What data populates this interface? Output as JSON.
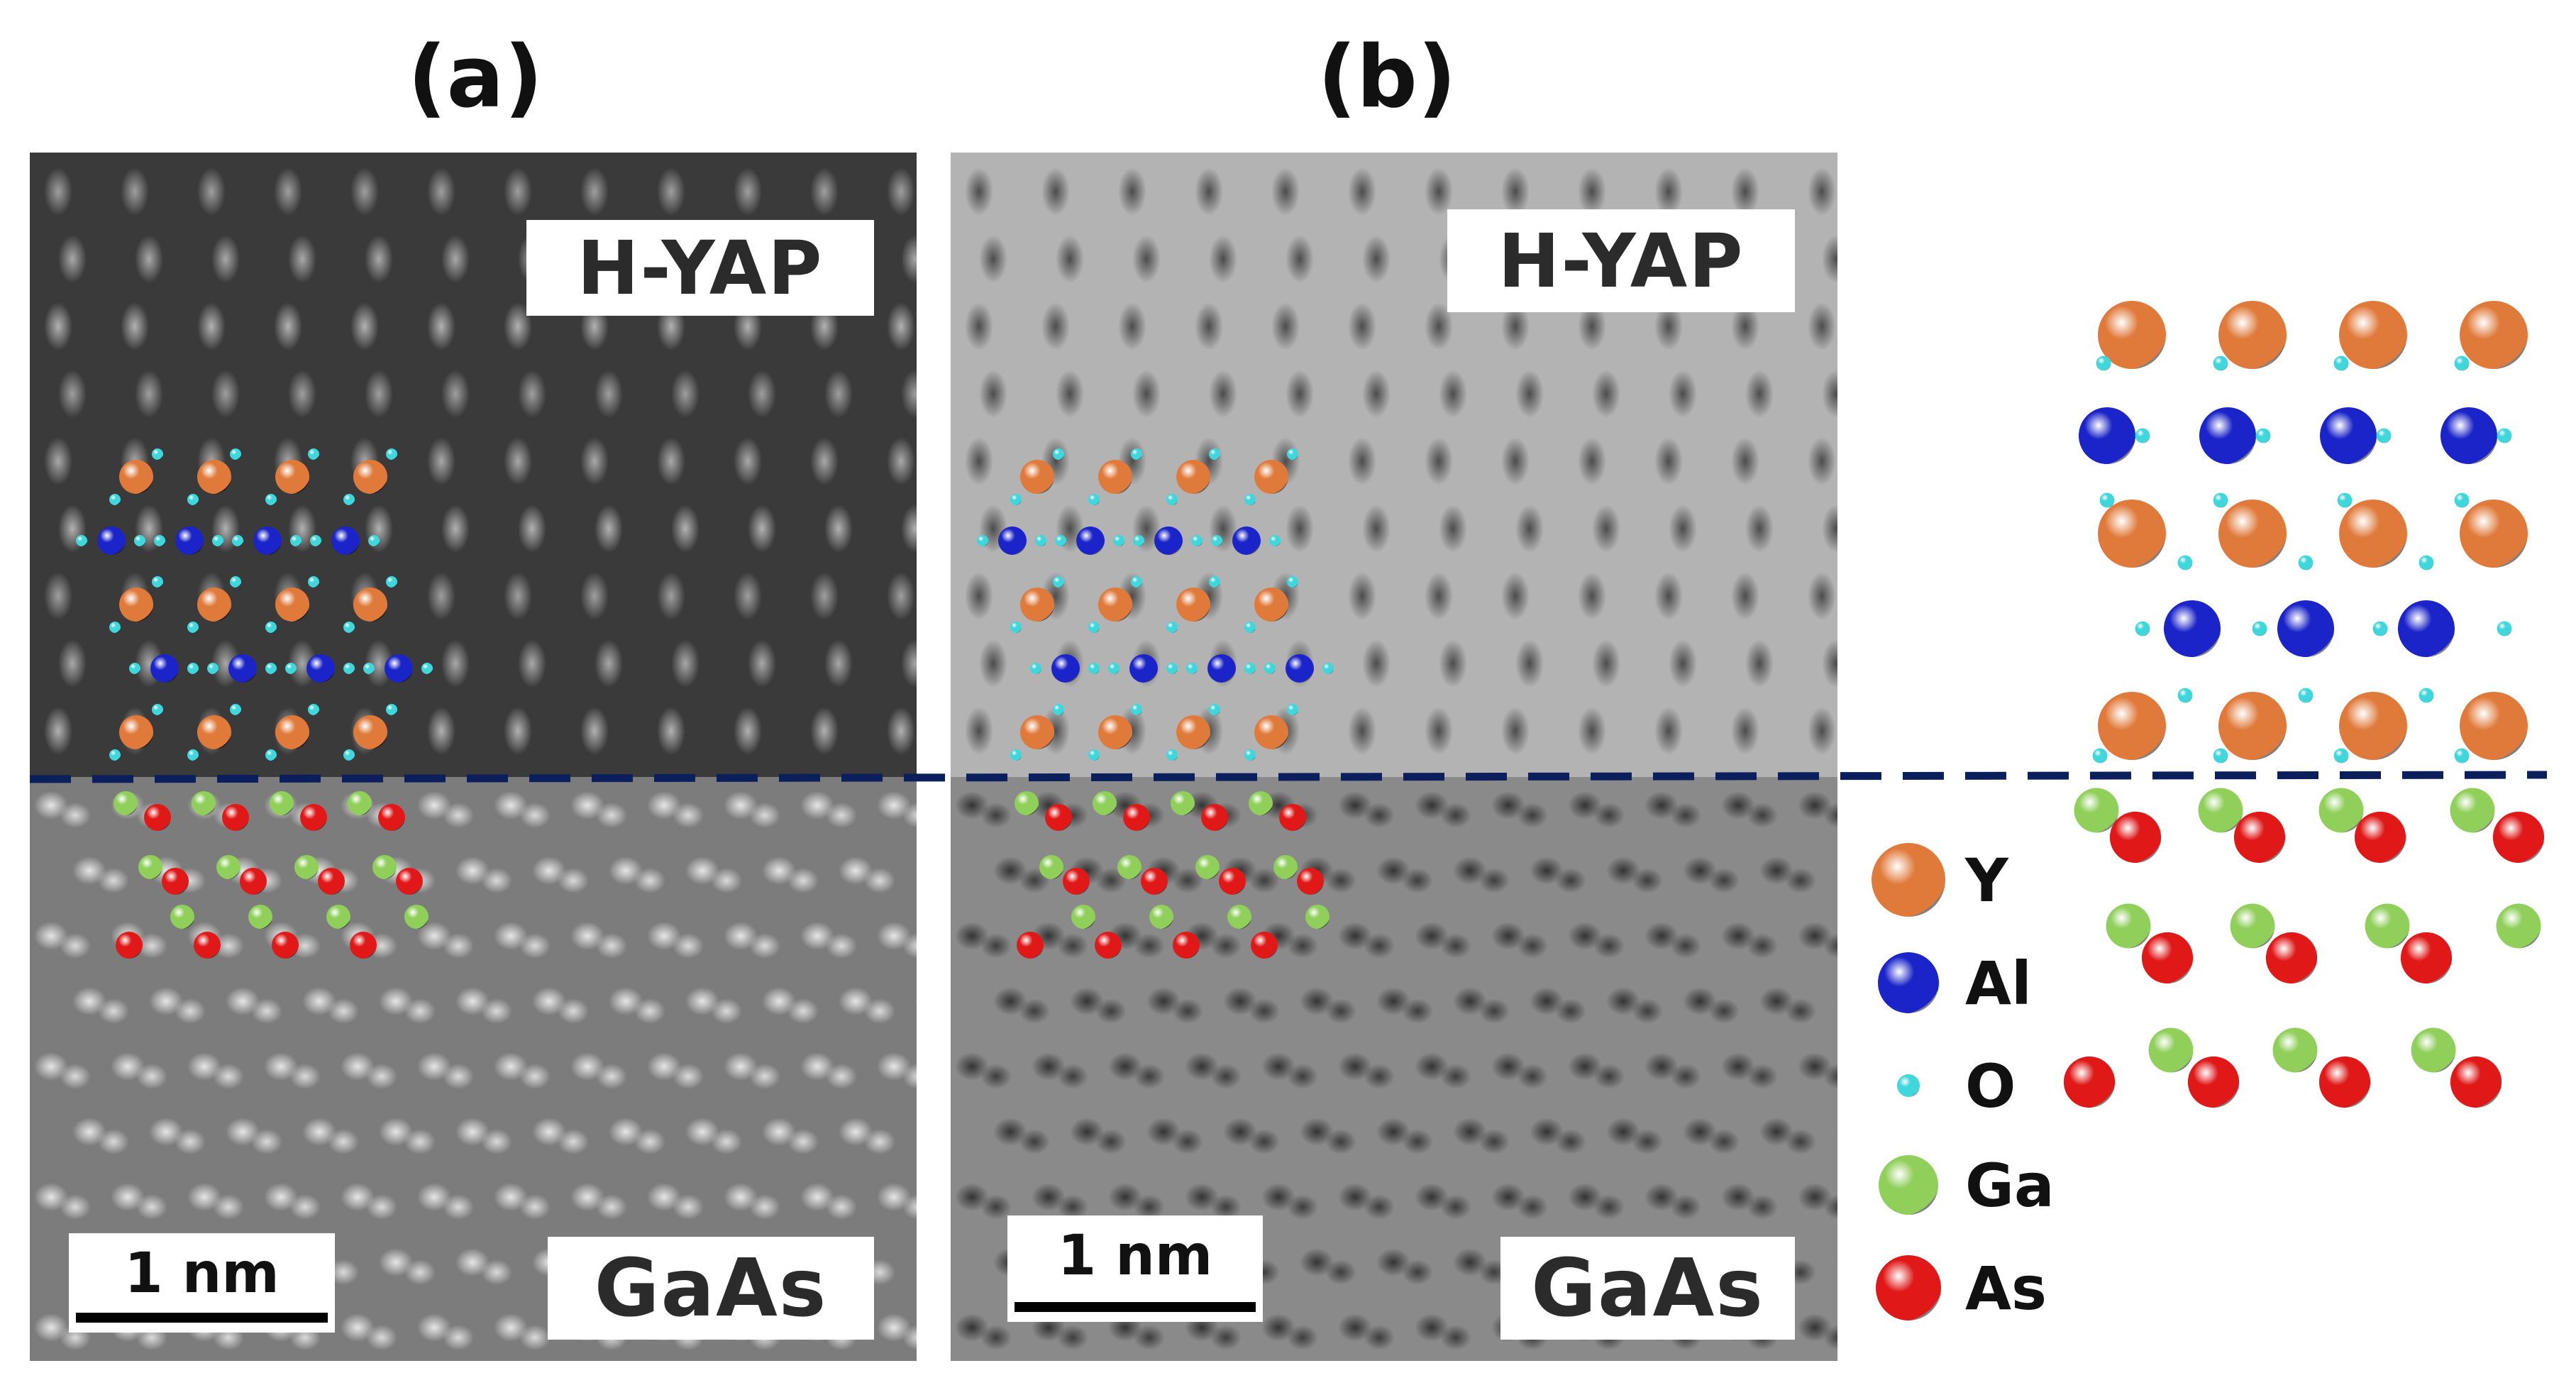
{
  "panels": [
    {
      "label": "(a)",
      "top_label": "H-YAP",
      "bottom_label": "GaAs",
      "scale": "1 nm",
      "contrast": "bright"
    },
    {
      "label": "(b)",
      "top_label": "H-YAP",
      "bottom_label": "GaAs",
      "scale": "1 nm",
      "contrast": "dark"
    }
  ],
  "legend": [
    {
      "symbol": "Y",
      "color": "#e07a3a"
    },
    {
      "symbol": "Al",
      "color": "#1a24c8"
    },
    {
      "symbol": "O",
      "color": "#3fd6dc"
    },
    {
      "symbol": "Ga",
      "color": "#8fcf5a"
    },
    {
      "symbol": "As",
      "color": "#e01818"
    }
  ],
  "interface_line_color": "#0b1f5c"
}
